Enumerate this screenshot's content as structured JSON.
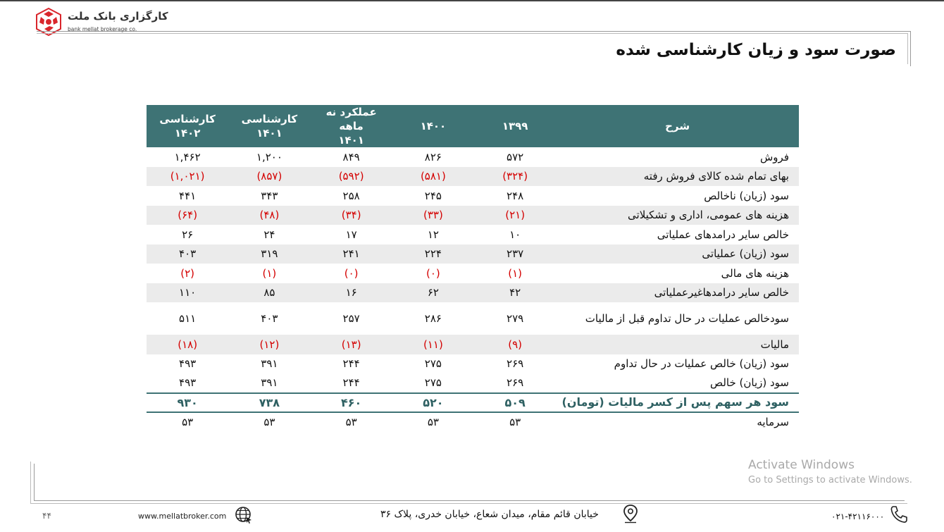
{
  "logo": {
    "name": "کارگزاری بانک ملت",
    "latin": "bank mellat brokerage co."
  },
  "title": "صورت سود و زیان کارشناسی شده",
  "table": {
    "headers": {
      "desc": "شرح",
      "c1": "۱۳۹۹",
      "c2": "۱۴۰۰",
      "c3_line1": "عملکرد نه ماهه",
      "c3_line2": "۱۴۰۱",
      "c4_line1": "کارشناسی",
      "c4_line2": "۱۴۰۱",
      "c5_line1": "کارشناسی",
      "c5_line2": "۱۴۰۲"
    },
    "rows": [
      {
        "desc": "فروش",
        "v": [
          "۵۷۲",
          "۸۲۶",
          "۸۴۹",
          "۱,۲۰۰",
          "۱,۴۶۲"
        ]
      },
      {
        "desc": "بهای تمام شده کالای فروش رفته",
        "v": [
          "(۳۲۴)",
          "(۵۸۱)",
          "(۵۹۲)",
          "(۸۵۷)",
          "(۱,۰۲۱)"
        ]
      },
      {
        "desc": "سود (زیان) ناخالص",
        "v": [
          "۲۴۸",
          "۲۴۵",
          "۲۵۸",
          "۳۴۳",
          "۴۴۱"
        ]
      },
      {
        "desc": "هزینه های عمومی، اداری و تشکیلاتی",
        "v": [
          "(۲۱)",
          "(۳۳)",
          "(۳۴)",
          "(۴۸)",
          "(۶۴)"
        ]
      },
      {
        "desc": "خالص سایر درامدهای  عملیاتی",
        "v": [
          "۱۰",
          "۱۲",
          "۱۷",
          "۲۴",
          "۲۶"
        ]
      },
      {
        "desc": "سود (زیان) عملیاتی",
        "v": [
          "۲۳۷",
          "۲۲۴",
          "۲۴۱",
          "۳۱۹",
          "۴۰۳"
        ]
      },
      {
        "desc": "هزینه های مالی",
        "v": [
          "(۱)",
          "(۰)",
          "(۰)",
          "(۱)",
          "(۲)"
        ]
      },
      {
        "desc": "خالص سایر درامدهاغیرعملیاتی",
        "v": [
          "۴۲",
          "۶۲",
          "۱۶",
          "۸۵",
          "۱۱۰"
        ]
      },
      {
        "desc": "سودخالص عملیات در حال تداوم قبل از مالیات",
        "v": [
          "۲۷۹",
          "۲۸۶",
          "۲۵۷",
          "۴۰۳",
          "۵۱۱"
        ]
      },
      {
        "desc": "مالیات",
        "v": [
          "(۹)",
          "(۱۱)",
          "(۱۳)",
          "(۱۲)",
          "(۱۸)"
        ]
      },
      {
        "desc": "سود (زیان) خالص عملیات در حال تداوم",
        "v": [
          "۲۶۹",
          "۲۷۵",
          "۲۴۴",
          "۳۹۱",
          "۴۹۳"
        ]
      },
      {
        "desc": "سود (زیان) خالص",
        "v": [
          "۲۶۹",
          "۲۷۵",
          "۲۴۴",
          "۳۹۱",
          "۴۹۳"
        ]
      },
      {
        "desc": "سود هر سهم پس از کسر مالیات (تومان)",
        "v": [
          "۵۰۹",
          "۵۲۰",
          "۴۶۰",
          "۷۳۸",
          "۹۳۰"
        ]
      },
      {
        "desc": "سرمایه",
        "v": [
          "۵۳",
          "۵۳",
          "۵۳",
          "۵۳",
          "۵۳"
        ]
      }
    ]
  },
  "footer": {
    "page_number": "۴۴",
    "website": "www.mellatbroker.com",
    "address": "خیابان قائم مقام، میدان شعاع، خیابان خدری، پلاک ۳۶",
    "phone": "۰۲۱-۴۲۱۱۶۰۰۰"
  },
  "watermark": {
    "line1": "Activate Windows",
    "line2": "Go to Settings to activate Windows."
  },
  "colors": {
    "header_bg": "#3e7375",
    "negative": "#d40000",
    "logo_red": "#d9262c"
  }
}
